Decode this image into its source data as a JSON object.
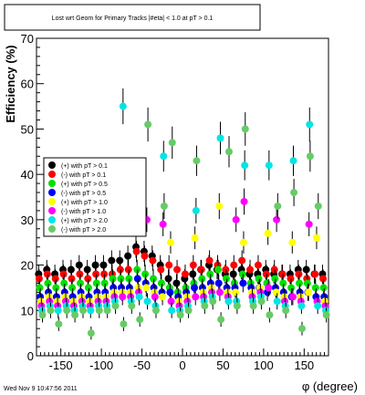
{
  "chart_data": {
    "type": "scatter",
    "title": "Lost wrt Geom for Primary Tracks  |#eta| < 1.0 at pT > 0.1",
    "xlabel": "φ (degree)",
    "ylabel": "Efficiency (%)",
    "xlim": [
      -180,
      180
    ],
    "ylim": [
      0,
      70
    ],
    "x_ticks": [
      -150,
      -100,
      -50,
      0,
      50,
      100,
      150
    ],
    "y_ticks": [
      0,
      10,
      20,
      30,
      40,
      50,
      60,
      70
    ],
    "grid": false,
    "legend_position": "upper-left",
    "series": [
      {
        "name": "(+) with pT > 0.1",
        "color": "#000000",
        "x": [
          -175,
          -165,
          -155,
          -145,
          -135,
          -125,
          -115,
          -105,
          -95,
          -85,
          -75,
          -65,
          -55,
          -45,
          -35,
          -25,
          -15,
          -5,
          5,
          15,
          25,
          35,
          45,
          55,
          65,
          75,
          85,
          95,
          105,
          115,
          125,
          135,
          145,
          155,
          165,
          175
        ],
        "y": [
          18,
          19,
          18,
          19,
          19,
          20,
          19,
          20,
          20,
          21,
          21,
          22,
          24,
          23,
          22,
          20,
          17,
          16,
          17,
          18,
          19,
          20,
          19,
          18,
          18,
          19,
          18,
          18,
          19,
          18,
          18,
          18,
          19,
          19,
          18,
          18
        ]
      },
      {
        "name": "(-) with pT > 0.1",
        "color": "#ff0000",
        "x": [
          -175,
          -165,
          -155,
          -145,
          -135,
          -125,
          -115,
          -105,
          -95,
          -85,
          -75,
          -65,
          -55,
          -45,
          -35,
          -25,
          -15,
          -5,
          5,
          15,
          25,
          35,
          45,
          55,
          65,
          75,
          85,
          95,
          105,
          115,
          125,
          135,
          145,
          155,
          165,
          175
        ],
        "y": [
          17,
          18,
          17,
          18,
          17,
          18,
          17,
          18,
          18,
          18,
          19,
          19,
          23,
          22,
          21,
          19,
          20,
          19,
          18,
          20,
          19,
          21,
          20,
          19,
          20,
          21,
          19,
          20,
          18,
          19,
          18,
          17,
          18,
          17,
          18,
          17
        ]
      },
      {
        "name": "(+) with pT > 0.5",
        "color": "#00e000",
        "x": [
          -175,
          -165,
          -155,
          -145,
          -135,
          -125,
          -115,
          -105,
          -95,
          -85,
          -75,
          -65,
          -55,
          -45,
          -35,
          -25,
          -15,
          -5,
          5,
          15,
          25,
          35,
          45,
          55,
          65,
          75,
          85,
          95,
          105,
          115,
          125,
          135,
          145,
          155,
          165,
          175
        ],
        "y": [
          15,
          16,
          15,
          16,
          15,
          16,
          15,
          16,
          16,
          17,
          17,
          17,
          19,
          18,
          17,
          16,
          15,
          14,
          15,
          16,
          17,
          18,
          19,
          17,
          16,
          18,
          16,
          17,
          16,
          17,
          16,
          15,
          16,
          16,
          15,
          15
        ]
      },
      {
        "name": "(-) with pT > 0.5",
        "color": "#0000ff",
        "x": [
          -175,
          -165,
          -155,
          -145,
          -135,
          -125,
          -115,
          -105,
          -95,
          -85,
          -75,
          -65,
          -55,
          -45,
          -35,
          -25,
          -15,
          -5,
          5,
          15,
          25,
          35,
          45,
          55,
          65,
          75,
          85,
          95,
          105,
          115,
          125,
          135,
          145,
          155,
          165,
          175
        ],
        "y": [
          13,
          14,
          13,
          14,
          13,
          14,
          13,
          14,
          14,
          15,
          15,
          15,
          17,
          16,
          15,
          14,
          14,
          13,
          14,
          15,
          15,
          16,
          16,
          15,
          15,
          16,
          15,
          15,
          14,
          15,
          14,
          13,
          14,
          14,
          13,
          13
        ]
      },
      {
        "name": "(+) with pT > 1.0",
        "color": "#ffff00",
        "x": [
          -175,
          -165,
          -155,
          -145,
          -135,
          -125,
          -115,
          -105,
          -95,
          -85,
          -75,
          -65,
          -55,
          -45,
          -35,
          -25,
          -15,
          -5,
          5,
          15,
          25,
          35,
          45,
          55,
          65,
          75,
          85,
          95,
          105,
          115,
          125,
          135,
          145,
          155,
          165,
          175
        ],
        "y": [
          12,
          13,
          12,
          13,
          12,
          13,
          12,
          13,
          13,
          14,
          14,
          14,
          15,
          15,
          14,
          13,
          25,
          12,
          13,
          26,
          14,
          15,
          33,
          14,
          14,
          25,
          14,
          15,
          27,
          14,
          13,
          25,
          13,
          14,
          26,
          12
        ]
      },
      {
        "name": "(-) with pT > 1.0",
        "color": "#ff00ff",
        "x": [
          -175,
          -165,
          -155,
          -145,
          -135,
          -125,
          -115,
          -105,
          -95,
          -85,
          -75,
          -65,
          -55,
          -45,
          -35,
          -25,
          -15,
          -5,
          5,
          15,
          25,
          35,
          45,
          55,
          65,
          75,
          85,
          95,
          105,
          115,
          125,
          135,
          145,
          155,
          165,
          175
        ],
        "y": [
          11,
          12,
          11,
          12,
          11,
          12,
          11,
          12,
          12,
          13,
          13,
          13,
          14,
          30,
          13,
          29,
          12,
          11,
          12,
          13,
          13,
          14,
          14,
          13,
          30,
          34,
          13,
          14,
          15,
          30,
          12,
          13,
          12,
          29,
          12,
          11
        ]
      },
      {
        "name": "(+) with pT > 2.0",
        "color": "#00e5e5",
        "x": [
          -175,
          -165,
          -155,
          -145,
          -135,
          -125,
          -115,
          -105,
          -95,
          -85,
          -75,
          -65,
          -55,
          -45,
          -35,
          -25,
          -15,
          -5,
          5,
          15,
          25,
          35,
          45,
          55,
          65,
          75,
          85,
          95,
          105,
          115,
          125,
          135,
          145,
          155,
          165,
          175
        ],
        "y": [
          10,
          11,
          10,
          11,
          10,
          11,
          10,
          11,
          11,
          12,
          55,
          12,
          13,
          12,
          11,
          44,
          10,
          10,
          11,
          32,
          12,
          13,
          48,
          12,
          12,
          42,
          12,
          13,
          42,
          12,
          11,
          43,
          11,
          51,
          11,
          10
        ]
      },
      {
        "name": "(-) with pT > 2.0",
        "color": "#66cc66",
        "x": [
          -175,
          -165,
          -155,
          -145,
          -135,
          -125,
          -115,
          -105,
          -95,
          -85,
          -75,
          -65,
          -55,
          -45,
          -35,
          -25,
          -15,
          -5,
          5,
          15,
          25,
          35,
          45,
          55,
          65,
          75,
          85,
          95,
          105,
          115,
          125,
          135,
          145,
          155,
          165,
          175
        ],
        "y": [
          9,
          10,
          7,
          10,
          9,
          10,
          5,
          10,
          10,
          11,
          7,
          11,
          8,
          51,
          10,
          33,
          47,
          9,
          10,
          43,
          11,
          12,
          8,
          45,
          11,
          50,
          11,
          12,
          9,
          33,
          10,
          36,
          6,
          44,
          33,
          9
        ]
      }
    ]
  },
  "footer": {
    "timestamp": "Wed Nov  9 10:47:56 2011"
  }
}
